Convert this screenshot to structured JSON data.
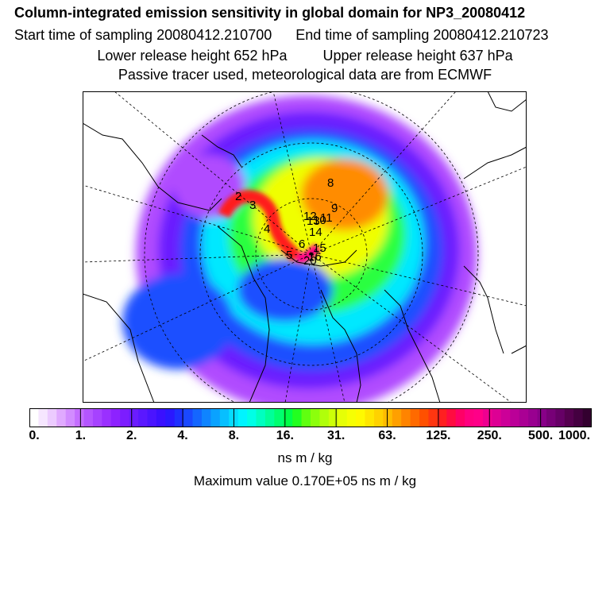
{
  "header": {
    "title": "Column-integrated emission sensitivity in global domain for NP3_20080412",
    "start_time": "Start time of sampling 20080412.210700",
    "end_time": "End time of sampling 20080412.210723",
    "lower_release": "Lower release height  652 hPa",
    "upper_release": "Upper release height  637 hPa",
    "tracer_note": "Passive tracer used, meteorological data are from ECMWF"
  },
  "colorbar": {
    "colors": [
      "#ffffff",
      "#f6e6ff",
      "#eccbff",
      "#e0aaff",
      "#d28cff",
      "#c46dff",
      "#b455ff",
      "#a642ff",
      "#9a30ff",
      "#8d22ff",
      "#7c1dff",
      "#6a1cff",
      "#5a18ff",
      "#4a14ff",
      "#3a10ff",
      "#2a18ff",
      "#1e30ff",
      "#1a48ff",
      "#1466ff",
      "#0f84ff",
      "#0aa2ff",
      "#07bfff",
      "#05dcff",
      "#00f4ff",
      "#00ffe6",
      "#00ffc0",
      "#00ff99",
      "#00ff70",
      "#00ff48",
      "#22ff20",
      "#60ff10",
      "#8cff0c",
      "#b0ff0a",
      "#ccff08",
      "#e6ff06",
      "#f6ff03",
      "#fffa00",
      "#ffe600",
      "#ffd200",
      "#ffbc00",
      "#ffa000",
      "#ff8400",
      "#ff6a00",
      "#ff5000",
      "#ff3610",
      "#ff2020",
      "#ff0c40",
      "#ff0066",
      "#ff0080",
      "#ff0088",
      "#ee0090",
      "#dd0094",
      "#cc0098",
      "#bb0098",
      "#aa0094",
      "#990090",
      "#880088",
      "#770077",
      "#660066",
      "#55004f",
      "#440040",
      "#33002f"
    ],
    "labels": [
      "0.",
      "1.",
      "2.",
      "4.",
      "8.",
      "16.",
      "31.",
      "63.",
      "125.",
      "250.",
      "500.",
      "1000."
    ],
    "units": "ns m / kg",
    "max_value": "Maximum value  0.170E+05 ns m / kg"
  },
  "map": {
    "projection": "polar-stereographic",
    "field_colors": {
      "background": "#ffffff",
      "outer_purple": "#b04cff",
      "violet": "#6a1cff",
      "blue": "#1e50ff",
      "cyan": "#00e8ff",
      "green": "#2aff40",
      "yellow": "#f0ff00",
      "orange": "#ff8c00",
      "red": "#ff1a1a",
      "magenta": "#ff0088",
      "coast": "#000000"
    },
    "trajectory_labels": [
      "2",
      "3",
      "4",
      "5",
      "6",
      "8",
      "9",
      "10",
      "11",
      "12",
      "13",
      "14",
      "15",
      "16",
      "20"
    ]
  }
}
